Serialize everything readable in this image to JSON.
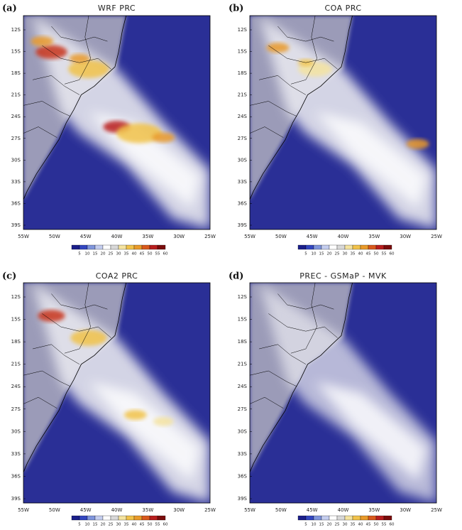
{
  "panels": [
    {
      "label": "(a)",
      "title": "WRF PRC"
    },
    {
      "label": "(b)",
      "title": "COA PRC"
    },
    {
      "label": "(c)",
      "title": "COA2 PRC"
    },
    {
      "label": "(d)",
      "title": "PREC - GSMaP - MVK"
    }
  ],
  "lat_labels": [
    "12S",
    "15S",
    "18S",
    "21S",
    "24S",
    "27S",
    "30S",
    "33S",
    "36S",
    "39S"
  ],
  "lon_labels": [
    "55W",
    "50W",
    "45W",
    "40W",
    "35W",
    "30W",
    "25W"
  ],
  "colorbar_labels": [
    "5",
    "10",
    "15",
    "20",
    "25",
    "30",
    "35",
    "40",
    "45",
    "50",
    "55",
    "60"
  ]
}
